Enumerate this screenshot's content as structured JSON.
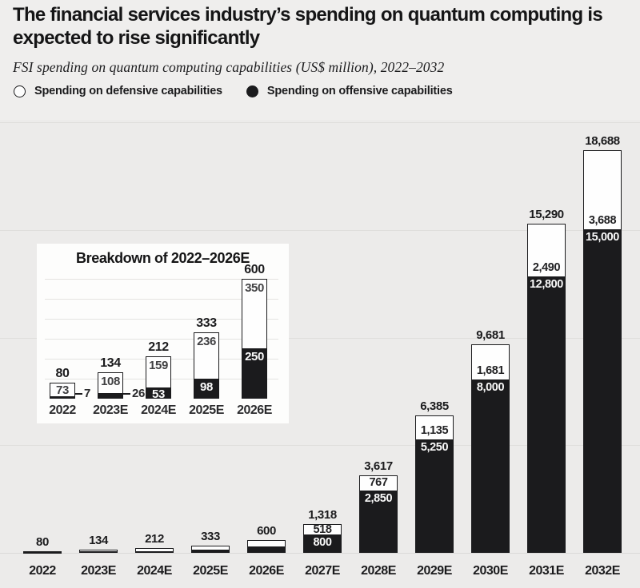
{
  "header": {
    "title": "The financial services industry’s spending on quantum computing is expected to rise significantly",
    "subtitle": "FSI spending on quantum computing capabilities (US$ million), 2022–2032",
    "legend": [
      {
        "id": "defensive",
        "label": "Spending on defensive capabilities",
        "fill": "#ffffff"
      },
      {
        "id": "offensive",
        "label": "Spending on offensive capabilities",
        "fill": "#1b1b1d"
      }
    ]
  },
  "colors": {
    "ink": "#1b1b1d",
    "page_bg": "#efeeed",
    "chart_bg": "#ecebea",
    "grid": "#dfdedc",
    "panel_bg": "#fdfdfc",
    "defensive_fill": "#fefefe",
    "offensive_fill": "#1b1b1d"
  },
  "chart_data": [
    {
      "id": "main",
      "type": "bar",
      "stacked": true,
      "unit": "US$ million",
      "categories": [
        "2022",
        "2023E",
        "2024E",
        "2025E",
        "2026E",
        "2027E",
        "2028E",
        "2029E",
        "2030E",
        "2031E",
        "2032E"
      ],
      "series": [
        {
          "name": "Spending on offensive capabilities",
          "values": [
            7,
            26,
            53,
            98,
            250,
            800,
            2850,
            5250,
            8000,
            12800,
            15000
          ]
        },
        {
          "name": "Spending on defensive capabilities",
          "values": [
            73,
            108,
            159,
            236,
            350,
            518,
            767,
            1135,
            1681,
            2490,
            3688
          ]
        }
      ],
      "totals": [
        80,
        134,
        212,
        333,
        600,
        1318,
        3617,
        6385,
        9681,
        15290,
        18688
      ],
      "total_labels": [
        "80",
        "134",
        "212",
        "333",
        "600",
        "1,318",
        "3,617",
        "6,385",
        "9,681",
        "15,290",
        "18,688"
      ],
      "defensive_inside_labels": [
        "",
        "",
        "",
        "",
        "",
        "518",
        "767",
        "1,135",
        "1,681",
        "2,490",
        "3,688"
      ],
      "offensive_inside_labels": [
        "",
        "",
        "",
        "",
        "",
        "800",
        "2,850",
        "5,250",
        "8,000",
        "12,800",
        "15,000"
      ],
      "offensive_callout_labels": [
        "",
        "",
        "",
        "",
        "",
        "",
        "",
        "",
        "",
        "",
        ""
      ],
      "ylim": [
        0,
        20000
      ],
      "grid_step": 5000,
      "grid_visible": true,
      "legend_position": "top"
    },
    {
      "id": "inset",
      "type": "bar",
      "stacked": true,
      "title": "Breakdown of 2022–2026E",
      "unit": "US$ million",
      "categories": [
        "2022",
        "2023E",
        "2024E",
        "2025E",
        "2026E"
      ],
      "series": [
        {
          "name": "Spending on offensive capabilities",
          "values": [
            7,
            26,
            53,
            98,
            250
          ]
        },
        {
          "name": "Spending on defensive capabilities",
          "values": [
            73,
            108,
            159,
            236,
            350
          ]
        }
      ],
      "totals": [
        80,
        134,
        212,
        333,
        600
      ],
      "total_labels": [
        "80",
        "134",
        "212",
        "333",
        "600"
      ],
      "defensive_inside_labels": [
        "73",
        "108",
        "159",
        "236",
        "350"
      ],
      "offensive_inside_labels": [
        "",
        "",
        "53",
        "98",
        "250"
      ],
      "offensive_callout_labels": [
        "7",
        "26",
        "",
        "",
        ""
      ],
      "ylim": [
        0,
        640
      ],
      "grid_step": 100,
      "grid_visible": true
    }
  ]
}
